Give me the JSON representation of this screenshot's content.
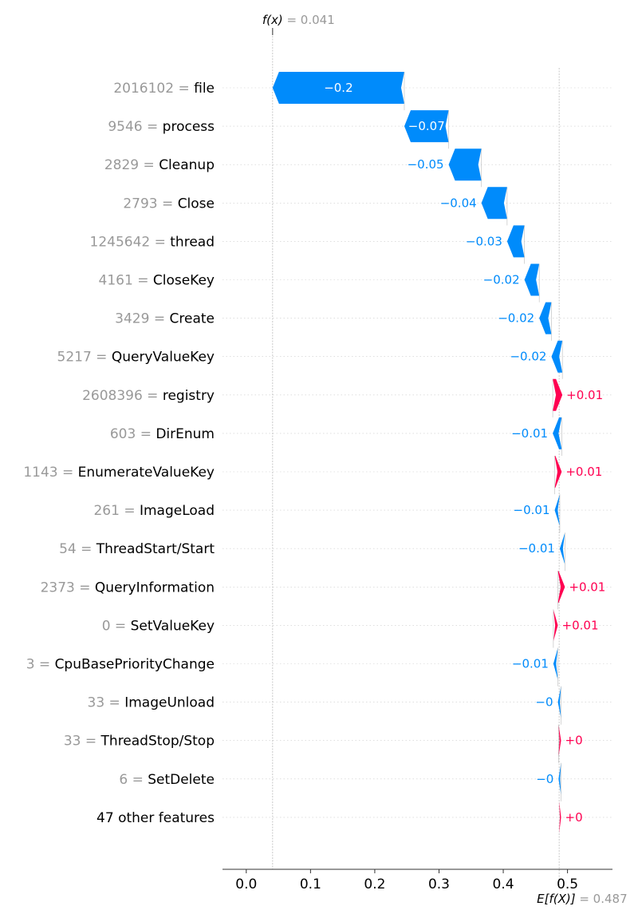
{
  "chart_data": {
    "type": "waterfall",
    "title": "",
    "xlabel": "",
    "ylabel": "",
    "xlim": [
      -0.037,
      0.57
    ],
    "x_ticks": [
      0.0,
      0.1,
      0.2,
      0.3,
      0.4,
      0.5
    ],
    "x_tick_labels": [
      "0.0",
      "0.1",
      "0.2",
      "0.3",
      "0.4",
      "0.5"
    ],
    "fx": {
      "label": "f(x)",
      "value_text": "= 0.041",
      "value": 0.041
    },
    "base": {
      "label": "E[f(X)]",
      "value_text": "= 0.487",
      "value": 0.487
    },
    "colors": {
      "positive": "#ff0051",
      "negative": "#008bfb",
      "feature_value": "#999999",
      "feature_name": "#000000"
    },
    "features": [
      {
        "value": "2016102",
        "name": "file",
        "start": 0.246,
        "end": 0.041,
        "label": "−0.2",
        "label_inside": true
      },
      {
        "value": "9546",
        "name": "process",
        "start": 0.315,
        "end": 0.246,
        "label": "−0.07",
        "label_inside": true
      },
      {
        "value": "2829",
        "name": "Cleanup",
        "start": 0.366,
        "end": 0.315,
        "label": "−0.05",
        "label_inside": false
      },
      {
        "value": "2793",
        "name": "Close",
        "start": 0.406,
        "end": 0.366,
        "label": "−0.04",
        "label_inside": false
      },
      {
        "value": "1245642",
        "name": "thread",
        "start": 0.433,
        "end": 0.406,
        "label": "−0.03",
        "label_inside": false
      },
      {
        "value": "4161",
        "name": "CloseKey",
        "start": 0.456,
        "end": 0.433,
        "label": "−0.02",
        "label_inside": false
      },
      {
        "value": "3429",
        "name": "Create",
        "start": 0.475,
        "end": 0.456,
        "label": "−0.02",
        "label_inside": false
      },
      {
        "value": "5217",
        "name": "QueryValueKey",
        "start": 0.492,
        "end": 0.475,
        "label": "−0.02",
        "label_inside": false
      },
      {
        "value": "2608396",
        "name": "registry",
        "start": 0.477,
        "end": 0.492,
        "label": "+0.01",
        "label_inside": false
      },
      {
        "value": "603",
        "name": "DirEnum",
        "start": 0.491,
        "end": 0.477,
        "label": "−0.01",
        "label_inside": false
      },
      {
        "value": "1143",
        "name": "EnumerateValueKey",
        "start": 0.48,
        "end": 0.491,
        "label": "+0.01",
        "label_inside": false
      },
      {
        "value": "261",
        "name": "ImageLoad",
        "start": 0.488,
        "end": 0.48,
        "label": "−0.01",
        "label_inside": false
      },
      {
        "value": "54",
        "name": "ThreadStart/Start",
        "start": 0.496,
        "end": 0.488,
        "label": "−0.01",
        "label_inside": false
      },
      {
        "value": "2373",
        "name": "QueryInformation",
        "start": 0.485,
        "end": 0.496,
        "label": "+0.01",
        "label_inside": false
      },
      {
        "value": "0",
        "name": "SetValueKey",
        "start": 0.478,
        "end": 0.485,
        "label": "+0.01",
        "label_inside": false
      },
      {
        "value": "3",
        "name": "CpuBasePriorityChange",
        "start": 0.485,
        "end": 0.478,
        "label": "−0.01",
        "label_inside": false
      },
      {
        "value": "33",
        "name": "ImageUnload",
        "start": 0.49,
        "end": 0.485,
        "label": "−0",
        "label_inside": false
      },
      {
        "value": "33",
        "name": "ThreadStop/Stop",
        "start": 0.486,
        "end": 0.49,
        "label": "+0",
        "label_inside": false
      },
      {
        "value": "6",
        "name": "SetDelete",
        "start": 0.49,
        "end": 0.486,
        "label": "−0",
        "label_inside": false
      },
      {
        "value": "",
        "name": "47 other features",
        "start": 0.487,
        "end": 0.49,
        "label": "+0",
        "label_inside": false
      }
    ]
  }
}
